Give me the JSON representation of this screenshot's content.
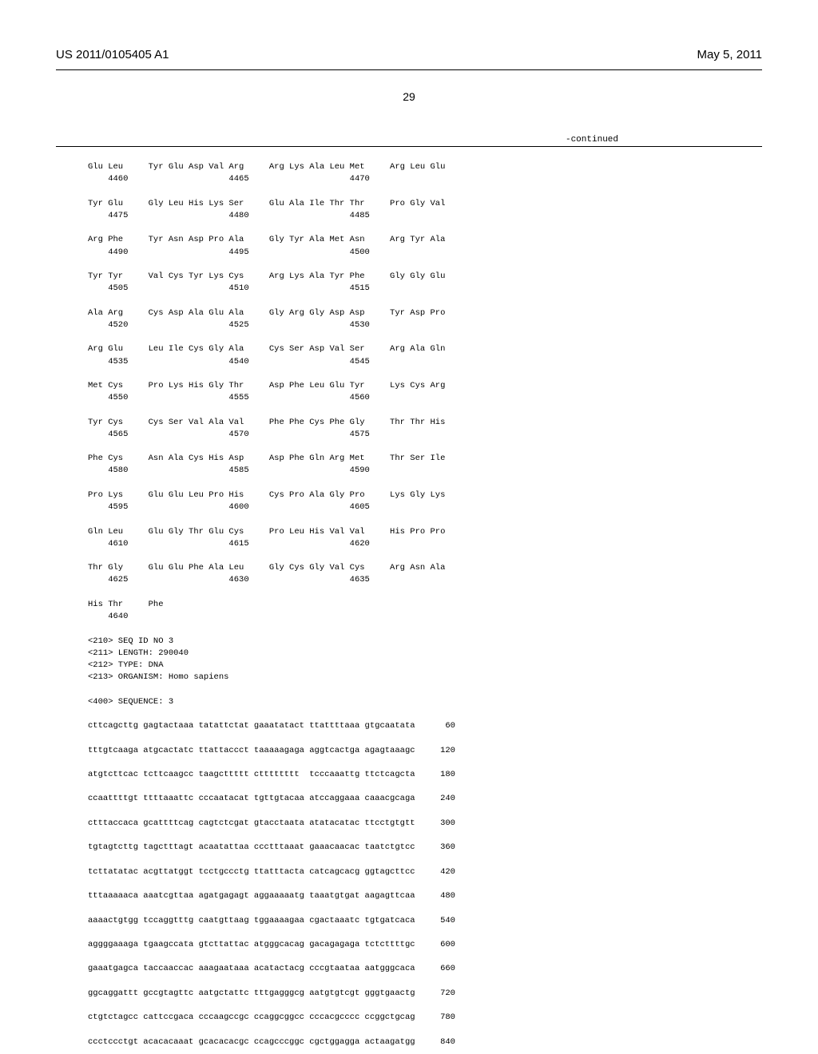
{
  "header": {
    "pub_number": "US 2011/0105405 A1",
    "pub_date": "May 5, 2011",
    "page_number": "29",
    "continued_label": "-continued"
  },
  "protein_rows": [
    {
      "aa": [
        "Glu",
        "Leu",
        "",
        "Tyr",
        "Glu",
        "Asp",
        "Val",
        "Arg",
        "",
        "Arg",
        "Lys",
        "Ala",
        "Leu",
        "Met",
        "",
        "Arg",
        "Leu",
        "Glu"
      ],
      "pos": [
        "",
        "4460",
        "",
        "",
        "",
        "",
        "",
        "4465",
        "",
        "",
        "",
        "",
        "",
        "4470",
        "",
        "",
        "",
        ""
      ]
    },
    {
      "aa": [
        "Tyr",
        "Glu",
        "",
        "Gly",
        "Leu",
        "His",
        "Lys",
        "Ser",
        "",
        "Glu",
        "Ala",
        "Ile",
        "Thr",
        "Thr",
        "",
        "Pro",
        "Gly",
        "Val"
      ],
      "pos": [
        "",
        "4475",
        "",
        "",
        "",
        "",
        "",
        "4480",
        "",
        "",
        "",
        "",
        "",
        "4485",
        "",
        "",
        "",
        ""
      ]
    },
    {
      "aa": [
        "Arg",
        "Phe",
        "",
        "Tyr",
        "Asn",
        "Asp",
        "Pro",
        "Ala",
        "",
        "Gly",
        "Tyr",
        "Ala",
        "Met",
        "Asn",
        "",
        "Arg",
        "Tyr",
        "Ala"
      ],
      "pos": [
        "",
        "4490",
        "",
        "",
        "",
        "",
        "",
        "4495",
        "",
        "",
        "",
        "",
        "",
        "4500",
        "",
        "",
        "",
        ""
      ]
    },
    {
      "aa": [
        "Tyr",
        "Tyr",
        "",
        "Val",
        "Cys",
        "Tyr",
        "Lys",
        "Cys",
        "",
        "Arg",
        "Lys",
        "Ala",
        "Tyr",
        "Phe",
        "",
        "Gly",
        "Gly",
        "Glu"
      ],
      "pos": [
        "",
        "4505",
        "",
        "",
        "",
        "",
        "",
        "4510",
        "",
        "",
        "",
        "",
        "",
        "4515",
        "",
        "",
        "",
        ""
      ]
    },
    {
      "aa": [
        "Ala",
        "Arg",
        "",
        "Cys",
        "Asp",
        "Ala",
        "Glu",
        "Ala",
        "",
        "Gly",
        "Arg",
        "Gly",
        "Asp",
        "Asp",
        "",
        "Tyr",
        "Asp",
        "Pro"
      ],
      "pos": [
        "",
        "4520",
        "",
        "",
        "",
        "",
        "",
        "4525",
        "",
        "",
        "",
        "",
        "",
        "4530",
        "",
        "",
        "",
        ""
      ]
    },
    {
      "aa": [
        "Arg",
        "Glu",
        "",
        "Leu",
        "Ile",
        "Cys",
        "Gly",
        "Ala",
        "",
        "Cys",
        "Ser",
        "Asp",
        "Val",
        "Ser",
        "",
        "Arg",
        "Ala",
        "Gln"
      ],
      "pos": [
        "",
        "4535",
        "",
        "",
        "",
        "",
        "",
        "4540",
        "",
        "",
        "",
        "",
        "",
        "4545",
        "",
        "",
        "",
        ""
      ]
    },
    {
      "aa": [
        "Met",
        "Cys",
        "",
        "Pro",
        "Lys",
        "His",
        "Gly",
        "Thr",
        "",
        "Asp",
        "Phe",
        "Leu",
        "Glu",
        "Tyr",
        "",
        "Lys",
        "Cys",
        "Arg"
      ],
      "pos": [
        "",
        "4550",
        "",
        "",
        "",
        "",
        "",
        "4555",
        "",
        "",
        "",
        "",
        "",
        "4560",
        "",
        "",
        "",
        ""
      ]
    },
    {
      "aa": [
        "Tyr",
        "Cys",
        "",
        "Cys",
        "Ser",
        "Val",
        "Ala",
        "Val",
        "",
        "Phe",
        "Phe",
        "Cys",
        "Phe",
        "Gly",
        "",
        "Thr",
        "Thr",
        "His"
      ],
      "pos": [
        "",
        "4565",
        "",
        "",
        "",
        "",
        "",
        "4570",
        "",
        "",
        "",
        "",
        "",
        "4575",
        "",
        "",
        "",
        ""
      ]
    },
    {
      "aa": [
        "Phe",
        "Cys",
        "",
        "Asn",
        "Ala",
        "Cys",
        "His",
        "Asp",
        "",
        "Asp",
        "Phe",
        "Gln",
        "Arg",
        "Met",
        "",
        "Thr",
        "Ser",
        "Ile"
      ],
      "pos": [
        "",
        "4580",
        "",
        "",
        "",
        "",
        "",
        "4585",
        "",
        "",
        "",
        "",
        "",
        "4590",
        "",
        "",
        "",
        ""
      ]
    },
    {
      "aa": [
        "Pro",
        "Lys",
        "",
        "Glu",
        "Glu",
        "Leu",
        "Pro",
        "His",
        "",
        "Cys",
        "Pro",
        "Ala",
        "Gly",
        "Pro",
        "",
        "Lys",
        "Gly",
        "Lys"
      ],
      "pos": [
        "",
        "4595",
        "",
        "",
        "",
        "",
        "",
        "4600",
        "",
        "",
        "",
        "",
        "",
        "4605",
        "",
        "",
        "",
        ""
      ]
    },
    {
      "aa": [
        "Gln",
        "Leu",
        "",
        "Glu",
        "Gly",
        "Thr",
        "Glu",
        "Cys",
        "",
        "Pro",
        "Leu",
        "His",
        "Val",
        "Val",
        "",
        "His",
        "Pro",
        "Pro"
      ],
      "pos": [
        "",
        "4610",
        "",
        "",
        "",
        "",
        "",
        "4615",
        "",
        "",
        "",
        "",
        "",
        "4620",
        "",
        "",
        "",
        ""
      ]
    },
    {
      "aa": [
        "Thr",
        "Gly",
        "",
        "Glu",
        "Glu",
        "Phe",
        "Ala",
        "Leu",
        "",
        "Gly",
        "Cys",
        "Gly",
        "Val",
        "Cys",
        "",
        "Arg",
        "Asn",
        "Ala"
      ],
      "pos": [
        "",
        "4625",
        "",
        "",
        "",
        "",
        "",
        "4630",
        "",
        "",
        "",
        "",
        "",
        "4635",
        "",
        "",
        "",
        ""
      ]
    },
    {
      "aa": [
        "His",
        "Thr",
        "",
        "Phe",
        "",
        "",
        "",
        "",
        "",
        "",
        "",
        "",
        "",
        "",
        "",
        "",
        "",
        ""
      ],
      "pos": [
        "",
        "4640",
        "",
        "",
        "",
        "",
        "",
        "",
        "",
        "",
        "",
        "",
        "",
        "",
        "",
        "",
        "",
        ""
      ]
    }
  ],
  "seq_meta": [
    "<210> SEQ ID NO 3",
    "<211> LENGTH: 290040",
    "<212> TYPE: DNA",
    "<213> ORGANISM: Homo sapiens",
    "",
    "<400> SEQUENCE: 3"
  ],
  "dna_rows": [
    {
      "groups": [
        "cttcagcttg",
        "gagtactaaa",
        "tatattctat",
        "gaaatatact",
        "ttattttaaa",
        "gtgcaatata"
      ],
      "pos": "60"
    },
    {
      "groups": [
        "tttgtcaaga",
        "atgcactatc",
        "ttattaccct",
        "taaaaagaga",
        "aggtcactga",
        "agagtaaagc"
      ],
      "pos": "120"
    },
    {
      "groups": [
        "atgtcttcac",
        "tcttcaagcc",
        "taagcttttt",
        "ctttttttt",
        "tcccaaattg",
        "ttctcagcta"
      ],
      "pos": "180"
    },
    {
      "groups": [
        "ccaattttgt",
        "ttttaaattc",
        "cccaatacat",
        "tgttgtacaa",
        "atccaggaaa",
        "caaacgcaga"
      ],
      "pos": "240"
    },
    {
      "groups": [
        "ctttaccaca",
        "gcattttcag",
        "cagtctcgat",
        "gtacctaata",
        "atatacatac",
        "ttcctgtgtt"
      ],
      "pos": "300"
    },
    {
      "groups": [
        "tgtagtcttg",
        "tagctttagt",
        "acaatattaa",
        "ccctttaaat",
        "gaaacaacac",
        "taatctgtcc"
      ],
      "pos": "360"
    },
    {
      "groups": [
        "tcttatatac",
        "acgttatggt",
        "tcctgccctg",
        "ttatttacta",
        "catcagcacg",
        "ggtagcttcc"
      ],
      "pos": "420"
    },
    {
      "groups": [
        "tttaaaaaca",
        "aaatcgttaa",
        "agatgagagt",
        "aggaaaaatg",
        "taaatgtgat",
        "aagagttcaa"
      ],
      "pos": "480"
    },
    {
      "groups": [
        "aaaactgtgg",
        "tccaggtttg",
        "caatgttaag",
        "tggaaaagaa",
        "cgactaaatc",
        "tgtgatcaca"
      ],
      "pos": "540"
    },
    {
      "groups": [
        "aggggaaaga",
        "tgaagccata",
        "gtcttattac",
        "atgggcacag",
        "gacagagaga",
        "tctcttttgc"
      ],
      "pos": "600"
    },
    {
      "groups": [
        "gaaatgagca",
        "taccaaccac",
        "aaagaataaa",
        "acatactacg",
        "cccgtaataa",
        "aatgggcaca"
      ],
      "pos": "660"
    },
    {
      "groups": [
        "ggcaggattt",
        "gccgtagttc",
        "aatgctattc",
        "tttgagggcg",
        "aatgtgtcgt",
        "gggtgaactg"
      ],
      "pos": "720"
    },
    {
      "groups": [
        "ctgtctagcc",
        "cattccgaca",
        "cccaagccgc",
        "ccaggcggcc",
        "cccacgcccc",
        "ccggctgcag"
      ],
      "pos": "780"
    },
    {
      "groups": [
        "ccctccctgt",
        "acacacaaat",
        "gcacacacgc",
        "ccagcccggc",
        "cgctggagga",
        "actaagatgg"
      ],
      "pos": "840"
    }
  ],
  "style": {
    "dna_group_width": 11,
    "dna_pos_pad": 7,
    "aa_cell_width": 4
  }
}
